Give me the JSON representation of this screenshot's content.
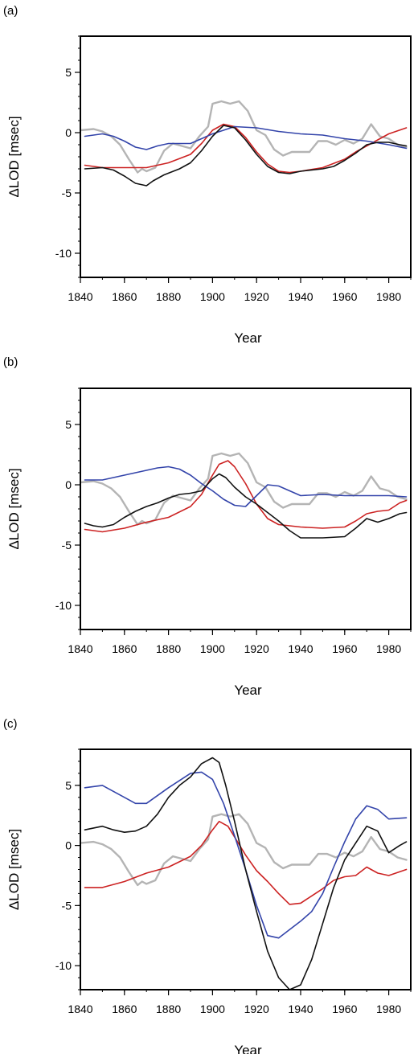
{
  "chart_data": [
    {
      "panel_label": "(a)",
      "type": "line",
      "xlabel": "Year",
      "ylabel": "ΔLOD [msec]",
      "xlim": [
        1840,
        1990
      ],
      "ylim": [
        -12,
        8
      ],
      "xticks": [
        1840,
        1860,
        1880,
        1900,
        1920,
        1940,
        1960,
        1980
      ],
      "yticks": [
        5,
        0,
        -5,
        -10
      ],
      "series": [
        {
          "color": "#b4b4b4",
          "x": [
            1840,
            1846,
            1850,
            1854,
            1858,
            1862,
            1866,
            1868,
            1870,
            1874,
            1878,
            1882,
            1886,
            1890,
            1894,
            1898,
            1900,
            1904,
            1908,
            1912,
            1916,
            1920,
            1924,
            1928,
            1932,
            1936,
            1940,
            1944,
            1948,
            1952,
            1956,
            1960,
            1964,
            1968,
            1972,
            1976,
            1980,
            1984,
            1988
          ],
          "y": [
            0.2,
            0.3,
            0.1,
            -0.3,
            -1.0,
            -2.2,
            -3.3,
            -3.0,
            -3.2,
            -2.9,
            -1.5,
            -0.9,
            -1.1,
            -1.3,
            -0.3,
            0.5,
            2.4,
            2.6,
            2.4,
            2.6,
            1.8,
            0.2,
            -0.2,
            -1.4,
            -1.9,
            -1.6,
            -1.6,
            -1.6,
            -0.7,
            -0.7,
            -1.0,
            -0.6,
            -0.9,
            -0.5,
            0.7,
            -0.3,
            -0.5,
            -1.0,
            -1.2
          ]
        },
        {
          "color": "#cc2222",
          "x": [
            1842,
            1850,
            1860,
            1870,
            1880,
            1890,
            1895,
            1900,
            1905,
            1910,
            1915,
            1920,
            1925,
            1930,
            1935,
            1940,
            1950,
            1960,
            1965,
            1970,
            1975,
            1980,
            1988
          ],
          "y": [
            -2.7,
            -2.9,
            -2.9,
            -2.9,
            -2.5,
            -1.8,
            -0.9,
            0.2,
            0.7,
            0.5,
            -0.4,
            -1.6,
            -2.6,
            -3.2,
            -3.3,
            -3.2,
            -2.9,
            -2.2,
            -1.6,
            -1.1,
            -0.6,
            -0.1,
            0.4
          ]
        },
        {
          "color": "#3344aa",
          "x": [
            1842,
            1850,
            1855,
            1860,
            1865,
            1870,
            1875,
            1880,
            1890,
            1900,
            1910,
            1920,
            1930,
            1940,
            1950,
            1960,
            1970,
            1980,
            1988
          ],
          "y": [
            -0.3,
            -0.1,
            -0.3,
            -0.7,
            -1.2,
            -1.4,
            -1.1,
            -0.9,
            -0.9,
            -0.1,
            0.5,
            0.4,
            0.1,
            -0.1,
            -0.2,
            -0.5,
            -0.7,
            -1.0,
            -1.3
          ]
        },
        {
          "color": "#111111",
          "x": [
            1842,
            1850,
            1855,
            1860,
            1865,
            1870,
            1873,
            1878,
            1885,
            1890,
            1895,
            1900,
            1905,
            1910,
            1915,
            1920,
            1925,
            1930,
            1935,
            1940,
            1950,
            1955,
            1960,
            1965,
            1970,
            1975,
            1980,
            1985,
            1988
          ],
          "y": [
            -3.0,
            -2.9,
            -3.1,
            -3.6,
            -4.2,
            -4.4,
            -4.0,
            -3.5,
            -3.0,
            -2.5,
            -1.5,
            -0.3,
            0.6,
            0.4,
            -0.6,
            -1.8,
            -2.8,
            -3.3,
            -3.4,
            -3.2,
            -3.0,
            -2.8,
            -2.3,
            -1.7,
            -1.0,
            -0.8,
            -0.8,
            -1.0,
            -1.1
          ]
        }
      ]
    },
    {
      "panel_label": "(b)",
      "type": "line",
      "xlabel": "Year",
      "ylabel": "ΔLOD [msec]",
      "xlim": [
        1840,
        1990
      ],
      "ylim": [
        -12,
        8
      ],
      "xticks": [
        1840,
        1860,
        1880,
        1900,
        1920,
        1940,
        1960,
        1980
      ],
      "yticks": [
        5,
        0,
        -5,
        -10
      ],
      "series": [
        {
          "color": "#b4b4b4",
          "x": [
            1840,
            1846,
            1850,
            1854,
            1858,
            1862,
            1866,
            1868,
            1870,
            1874,
            1878,
            1882,
            1886,
            1890,
            1894,
            1898,
            1900,
            1904,
            1908,
            1912,
            1916,
            1920,
            1924,
            1928,
            1932,
            1936,
            1940,
            1944,
            1948,
            1952,
            1956,
            1960,
            1964,
            1968,
            1972,
            1976,
            1980,
            1984,
            1988
          ],
          "y": [
            0.2,
            0.3,
            0.1,
            -0.3,
            -1.0,
            -2.2,
            -3.3,
            -3.0,
            -3.2,
            -2.9,
            -1.5,
            -0.9,
            -1.1,
            -1.3,
            -0.3,
            0.5,
            2.4,
            2.6,
            2.4,
            2.6,
            1.8,
            0.2,
            -0.2,
            -1.4,
            -1.9,
            -1.6,
            -1.6,
            -1.6,
            -0.7,
            -0.7,
            -1.0,
            -0.6,
            -0.9,
            -0.5,
            0.7,
            -0.3,
            -0.5,
            -1.0,
            -1.2
          ]
        },
        {
          "color": "#cc2222",
          "x": [
            1842,
            1850,
            1860,
            1870,
            1880,
            1890,
            1895,
            1900,
            1903,
            1907,
            1910,
            1915,
            1920,
            1925,
            1930,
            1940,
            1950,
            1960,
            1965,
            1970,
            1975,
            1980,
            1985,
            1988
          ],
          "y": [
            -3.7,
            -3.9,
            -3.6,
            -3.1,
            -2.7,
            -1.8,
            -0.8,
            0.8,
            1.7,
            2.0,
            1.5,
            0.1,
            -1.6,
            -2.8,
            -3.3,
            -3.5,
            -3.6,
            -3.5,
            -3.0,
            -2.4,
            -2.2,
            -2.1,
            -1.5,
            -1.3
          ]
        },
        {
          "color": "#3344aa",
          "x": [
            1842,
            1850,
            1860,
            1870,
            1875,
            1880,
            1885,
            1890,
            1895,
            1900,
            1905,
            1910,
            1915,
            1920,
            1925,
            1930,
            1935,
            1940,
            1950,
            1960,
            1970,
            1980,
            1988
          ],
          "y": [
            0.4,
            0.4,
            0.8,
            1.2,
            1.4,
            1.5,
            1.3,
            0.8,
            0.1,
            -0.5,
            -1.2,
            -1.7,
            -1.8,
            -0.9,
            0.0,
            -0.1,
            -0.5,
            -0.9,
            -0.8,
            -0.9,
            -0.9,
            -0.9,
            -1.0
          ]
        },
        {
          "color": "#111111",
          "x": [
            1842,
            1846,
            1850,
            1855,
            1860,
            1865,
            1870,
            1875,
            1880,
            1885,
            1890,
            1895,
            1900,
            1903,
            1906,
            1910,
            1915,
            1920,
            1925,
            1930,
            1935,
            1940,
            1950,
            1960,
            1965,
            1970,
            1975,
            1980,
            1985,
            1988
          ],
          "y": [
            -3.2,
            -3.4,
            -3.5,
            -3.3,
            -2.7,
            -2.2,
            -1.8,
            -1.5,
            -1.1,
            -0.8,
            -0.7,
            -0.5,
            0.5,
            0.9,
            0.6,
            -0.2,
            -1.0,
            -1.6,
            -2.3,
            -3.0,
            -3.8,
            -4.4,
            -4.4,
            -4.3,
            -3.6,
            -2.8,
            -3.1,
            -2.8,
            -2.4,
            -2.3
          ]
        }
      ]
    },
    {
      "panel_label": "(c)",
      "type": "line",
      "xlabel": "Year",
      "ylabel": "ΔLOD [msec]",
      "xlim": [
        1840,
        1990
      ],
      "ylim": [
        -12,
        8
      ],
      "xticks": [
        1840,
        1860,
        1880,
        1900,
        1920,
        1940,
        1960,
        1980
      ],
      "yticks": [
        5,
        0,
        -5,
        -10
      ],
      "series": [
        {
          "color": "#b4b4b4",
          "x": [
            1840,
            1846,
            1850,
            1854,
            1858,
            1862,
            1866,
            1868,
            1870,
            1874,
            1878,
            1882,
            1886,
            1890,
            1894,
            1898,
            1900,
            1904,
            1908,
            1912,
            1916,
            1920,
            1924,
            1928,
            1932,
            1936,
            1940,
            1944,
            1948,
            1952,
            1956,
            1960,
            1964,
            1968,
            1972,
            1976,
            1980,
            1984,
            1988
          ],
          "y": [
            0.2,
            0.3,
            0.1,
            -0.3,
            -1.0,
            -2.2,
            -3.3,
            -3.0,
            -3.2,
            -2.9,
            -1.5,
            -0.9,
            -1.1,
            -1.3,
            -0.3,
            0.5,
            2.4,
            2.6,
            2.4,
            2.6,
            1.8,
            0.2,
            -0.2,
            -1.4,
            -1.9,
            -1.6,
            -1.6,
            -1.6,
            -0.7,
            -0.7,
            -1.0,
            -0.6,
            -0.9,
            -0.5,
            0.7,
            -0.3,
            -0.5,
            -1.0,
            -1.2
          ]
        },
        {
          "color": "#cc2222",
          "x": [
            1842,
            1850,
            1860,
            1870,
            1880,
            1890,
            1895,
            1900,
            1903,
            1907,
            1910,
            1915,
            1920,
            1925,
            1930,
            1935,
            1940,
            1945,
            1950,
            1955,
            1960,
            1965,
            1970,
            1975,
            1980,
            1988
          ],
          "y": [
            -3.5,
            -3.5,
            -3.0,
            -2.3,
            -1.8,
            -0.9,
            0.0,
            1.3,
            2.0,
            1.6,
            0.7,
            -0.8,
            -2.1,
            -3.0,
            -4.0,
            -4.9,
            -4.8,
            -4.2,
            -3.6,
            -2.9,
            -2.6,
            -2.5,
            -1.8,
            -2.3,
            -2.5,
            -2.0
          ]
        },
        {
          "color": "#3344aa",
          "x": [
            1842,
            1850,
            1860,
            1865,
            1870,
            1880,
            1890,
            1895,
            1900,
            1905,
            1910,
            1915,
            1920,
            1925,
            1930,
            1935,
            1940,
            1945,
            1950,
            1955,
            1960,
            1965,
            1970,
            1975,
            1980,
            1988
          ],
          "y": [
            4.8,
            5.0,
            4.0,
            3.5,
            3.5,
            4.8,
            6.0,
            6.1,
            5.5,
            3.5,
            0.8,
            -2.0,
            -5.0,
            -7.5,
            -7.7,
            -7.0,
            -6.3,
            -5.5,
            -4.0,
            -1.8,
            0.3,
            2.2,
            3.3,
            3.0,
            2.2,
            2.3
          ]
        },
        {
          "color": "#111111",
          "x": [
            1842,
            1850,
            1855,
            1860,
            1865,
            1870,
            1875,
            1880,
            1885,
            1890,
            1895,
            1900,
            1903,
            1906,
            1910,
            1915,
            1920,
            1925,
            1930,
            1935,
            1940,
            1945,
            1950,
            1955,
            1960,
            1965,
            1970,
            1975,
            1980,
            1985,
            1988
          ],
          "y": [
            1.3,
            1.6,
            1.3,
            1.1,
            1.2,
            1.6,
            2.6,
            4.0,
            5.0,
            5.7,
            6.8,
            7.3,
            6.9,
            5.0,
            2.0,
            -2.0,
            -5.5,
            -8.8,
            -11.0,
            -12.0,
            -11.6,
            -9.5,
            -6.5,
            -3.5,
            -1.2,
            0.2,
            1.6,
            1.2,
            -0.6,
            0.0,
            0.3
          ]
        }
      ]
    }
  ]
}
